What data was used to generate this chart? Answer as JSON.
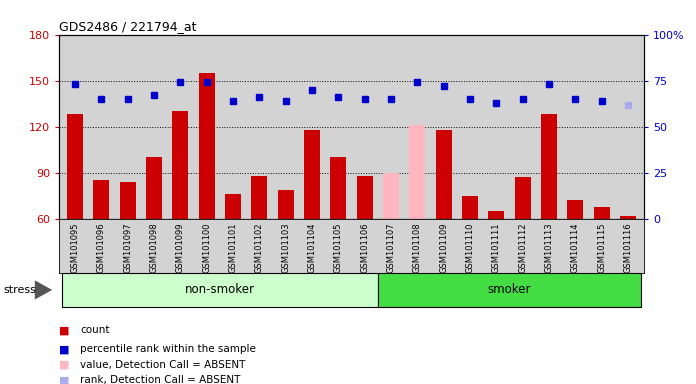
{
  "title": "GDS2486 / 221794_at",
  "samples": [
    "GSM101095",
    "GSM101096",
    "GSM101097",
    "GSM101098",
    "GSM101099",
    "GSM101100",
    "GSM101101",
    "GSM101102",
    "GSM101103",
    "GSM101104",
    "GSM101105",
    "GSM101106",
    "GSM101107",
    "GSM101108",
    "GSM101109",
    "GSM101110",
    "GSM101111",
    "GSM101112",
    "GSM101113",
    "GSM101114",
    "GSM101115",
    "GSM101116"
  ],
  "count_values": [
    128,
    85,
    84,
    100,
    130,
    155,
    76,
    88,
    79,
    118,
    100,
    88,
    90,
    121,
    118,
    75,
    65,
    87,
    128,
    72,
    68,
    62
  ],
  "count_absent": [
    false,
    false,
    false,
    false,
    false,
    false,
    false,
    false,
    false,
    false,
    false,
    false,
    true,
    true,
    false,
    false,
    false,
    false,
    false,
    false,
    false,
    false
  ],
  "rank_values": [
    73,
    65,
    65,
    67,
    74,
    74,
    64,
    66,
    64,
    70,
    66,
    65,
    65,
    74,
    72,
    65,
    63,
    65,
    73,
    65,
    64,
    62
  ],
  "rank_absent": [
    false,
    false,
    false,
    false,
    false,
    false,
    false,
    false,
    false,
    false,
    false,
    false,
    false,
    false,
    false,
    false,
    false,
    false,
    false,
    false,
    false,
    true
  ],
  "ylim_left": [
    60,
    180
  ],
  "ylim_right": [
    0,
    100
  ],
  "yticks_left": [
    60,
    90,
    120,
    150,
    180
  ],
  "yticks_right": [
    0,
    25,
    50,
    75,
    100
  ],
  "ytick_right_labels": [
    "0",
    "25",
    "50",
    "75",
    "100%"
  ],
  "bar_color_normal": "#cc0000",
  "bar_color_absent": "#ffb6c1",
  "dot_color_normal": "#0000cc",
  "dot_color_absent": "#aaaaee",
  "background_color": "#d3d3d3",
  "group_defs": [
    {
      "label": "non-smoker",
      "start": 0,
      "end": 11,
      "color": "#ccffcc"
    },
    {
      "label": "smoker",
      "start": 12,
      "end": 21,
      "color": "#44dd44"
    }
  ],
  "legend_items": [
    {
      "label": "count",
      "color": "#cc0000"
    },
    {
      "label": "percentile rank within the sample",
      "color": "#0000cc"
    },
    {
      "label": "value, Detection Call = ABSENT",
      "color": "#ffb6c1"
    },
    {
      "label": "rank, Detection Call = ABSENT",
      "color": "#aaaaee"
    }
  ]
}
